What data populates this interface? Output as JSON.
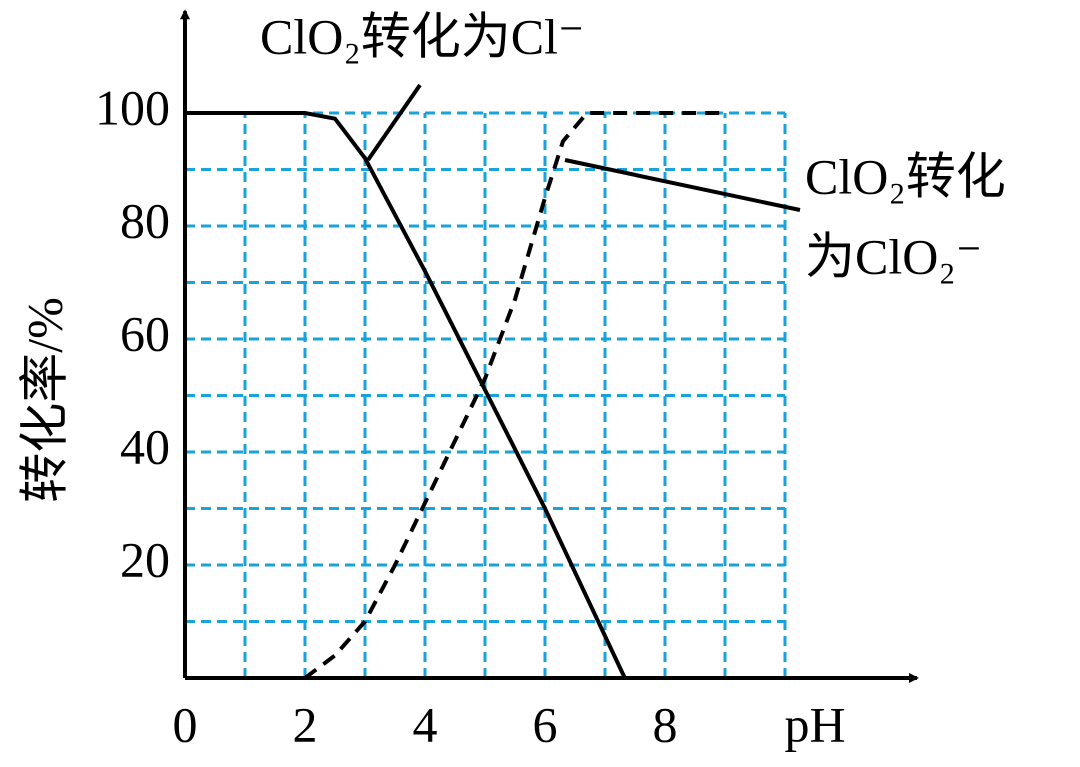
{
  "chart_data": {
    "type": "line",
    "xlabel": "pH",
    "ylabel": "转化率/%",
    "xlim": [
      0,
      12.2
    ],
    "ylim": [
      0,
      118
    ],
    "xticks": [
      0,
      2,
      4,
      6,
      8
    ],
    "yticks": [
      20,
      40,
      60,
      80,
      100
    ],
    "xgrid": [
      1,
      2,
      3,
      4,
      5,
      6,
      7,
      8,
      9,
      10
    ],
    "ygrid": [
      10,
      20,
      30,
      40,
      50,
      60,
      70,
      80,
      90,
      100
    ],
    "grid": true,
    "grid_color": "#1aa3d9",
    "series": [
      {
        "color": "#000000",
        "dash": false,
        "x": [
          0,
          2,
          2.5,
          3,
          4,
          5,
          6,
          7.33
        ],
        "values": [
          100,
          100,
          99,
          92,
          72,
          51,
          30,
          0
        ]
      },
      {
        "color": "#000000",
        "dash": true,
        "x": [
          2,
          2.5,
          3,
          3.5,
          4,
          4.5,
          5,
          5.5,
          6,
          6.3,
          6.7,
          9
        ],
        "values": [
          0,
          4,
          10,
          20,
          31,
          42,
          53,
          67,
          85,
          95,
          100,
          100
        ]
      }
    ],
    "annotations": [
      {
        "lines": [
          "ClO₂转化为Cl⁻"
        ]
      },
      {
        "lines": [
          "ClO₂转化",
          "为ClO₂⁻"
        ]
      }
    ]
  }
}
